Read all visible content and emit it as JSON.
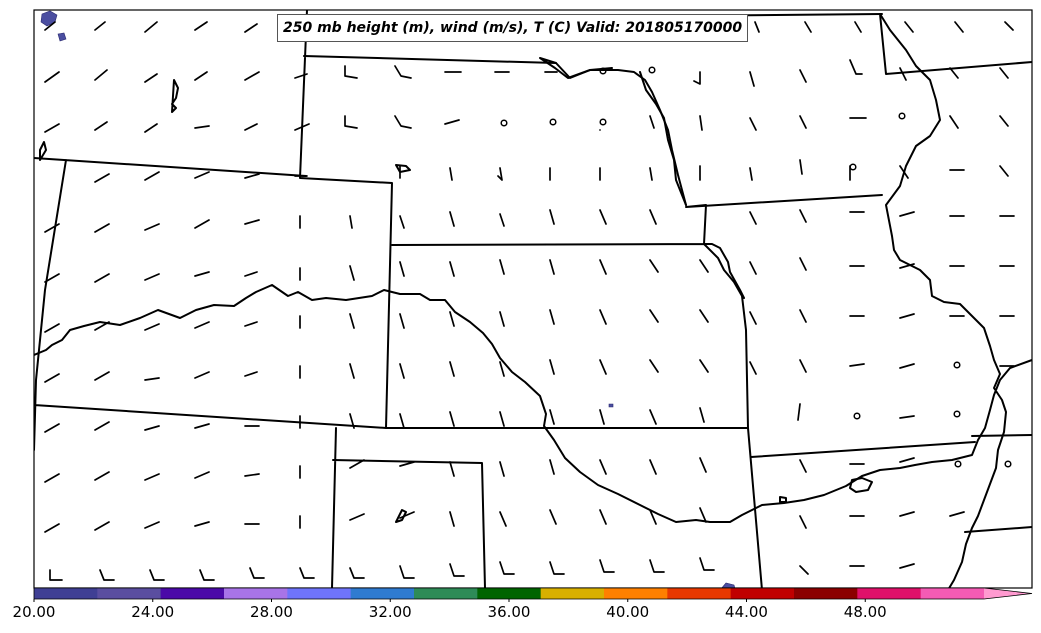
{
  "title": "250 mb height (m), wind (m/s), T (C) Valid: 201805170000",
  "colorbar": {
    "tick_labels": [
      "20.00",
      "24.00",
      "28.00",
      "32.00",
      "36.00",
      "40.00",
      "44.00",
      "48.00"
    ],
    "range": [
      20,
      52
    ],
    "extend": "max",
    "colors": [
      "#3f3f94",
      "#5a4ea0",
      "#4b0aa8",
      "#a874e8",
      "#6f74fb",
      "#2f7bd0",
      "#2e8b57",
      "#006400",
      "#d8b000",
      "#ff8000",
      "#e83800",
      "#c00000",
      "#8b0000",
      "#e0106a",
      "#f45bb4",
      "#ff9ad0"
    ]
  },
  "map": {
    "projection": "regional (central US)",
    "frame_color": "#000000",
    "boundary_color": "#000000",
    "temperature_fill_color": "#4b4ea0"
  }
}
